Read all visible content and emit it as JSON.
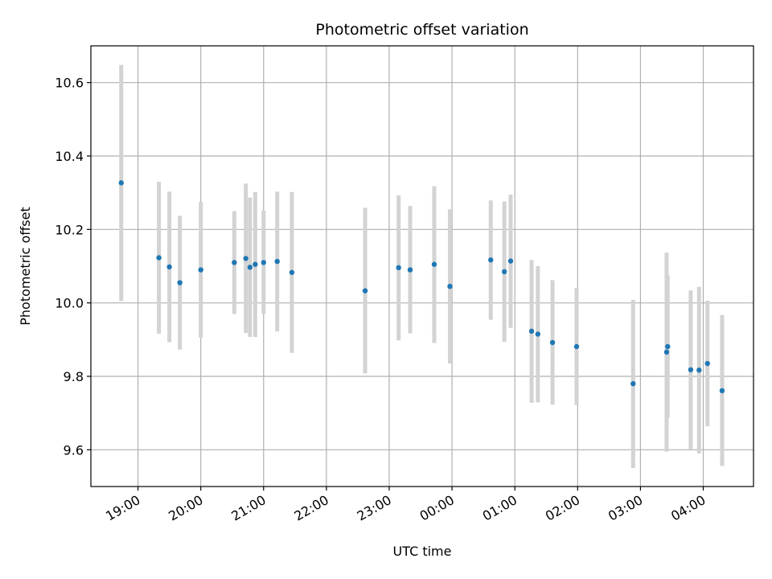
{
  "chart_data": {
    "type": "scatter",
    "title": "Photometric offset variation",
    "xlabel": "UTC time",
    "ylabel": "Photometric offset",
    "grid": true,
    "ylim": [
      9.5,
      10.7
    ],
    "yticks": [
      9.6,
      9.8,
      10.0,
      10.2,
      10.4,
      10.6
    ],
    "ytick_labels": [
      "9.6",
      "9.8",
      "10.0",
      "10.2",
      "10.4",
      "10.6"
    ],
    "xlim": [
      "18:15",
      "04:48"
    ],
    "xticks": [
      "19:00",
      "20:00",
      "21:00",
      "22:00",
      "23:00",
      "00:00",
      "01:00",
      "02:00",
      "03:00",
      "04:00"
    ],
    "colors": {
      "point": "#1f77b4",
      "errorbar": "#d3d3d3",
      "grid": "#b0b0b0"
    },
    "points": [
      {
        "x": "18:44",
        "y": 10.327,
        "low": 10.005,
        "high": 10.648
      },
      {
        "x": "19:20",
        "y": 10.123,
        "low": 9.916,
        "high": 10.33
      },
      {
        "x": "19:30",
        "y": 10.098,
        "low": 9.893,
        "high": 10.303
      },
      {
        "x": "19:40",
        "y": 10.055,
        "low": 9.873,
        "high": 10.237
      },
      {
        "x": "20:00",
        "y": 10.09,
        "low": 9.905,
        "high": 10.275
      },
      {
        "x": "20:32",
        "y": 10.11,
        "low": 9.97,
        "high": 10.25
      },
      {
        "x": "20:43",
        "y": 10.121,
        "low": 9.918,
        "high": 10.325
      },
      {
        "x": "20:47",
        "y": 10.097,
        "low": 9.907,
        "high": 10.287
      },
      {
        "x": "20:52",
        "y": 10.105,
        "low": 9.907,
        "high": 10.302
      },
      {
        "x": "21:00",
        "y": 10.11,
        "low": 9.97,
        "high": 10.251
      },
      {
        "x": "21:13",
        "y": 10.113,
        "low": 9.922,
        "high": 10.303
      },
      {
        "x": "21:27",
        "y": 10.083,
        "low": 9.864,
        "high": 10.302
      },
      {
        "x": "22:37",
        "y": 10.033,
        "low": 9.808,
        "high": 10.259
      },
      {
        "x": "23:09",
        "y": 10.096,
        "low": 9.898,
        "high": 10.293
      },
      {
        "x": "23:20",
        "y": 10.09,
        "low": 9.917,
        "high": 10.264
      },
      {
        "x": "23:43",
        "y": 10.105,
        "low": 9.891,
        "high": 10.318
      },
      {
        "x": "23:58",
        "y": 10.045,
        "low": 9.835,
        "high": 10.255
      },
      {
        "x": "00:37",
        "y": 10.117,
        "low": 9.954,
        "high": 10.279
      },
      {
        "x": "00:50",
        "y": 10.085,
        "low": 9.894,
        "high": 10.276
      },
      {
        "x": "00:56",
        "y": 10.114,
        "low": 9.932,
        "high": 10.295
      },
      {
        "x": "01:16",
        "y": 9.923,
        "low": 9.728,
        "high": 10.117
      },
      {
        "x": "01:22",
        "y": 9.915,
        "low": 9.729,
        "high": 10.1
      },
      {
        "x": "01:36",
        "y": 9.892,
        "low": 9.723,
        "high": 10.062
      },
      {
        "x": "01:59",
        "y": 9.881,
        "low": 9.722,
        "high": 10.041
      },
      {
        "x": "02:53",
        "y": 9.78,
        "low": 9.55,
        "high": 10.008
      },
      {
        "x": "03:25",
        "y": 9.866,
        "low": 9.595,
        "high": 10.137
      },
      {
        "x": "03:26",
        "y": 9.881,
        "low": 9.687,
        "high": 10.075
      },
      {
        "x": "03:48",
        "y": 9.818,
        "low": 9.602,
        "high": 10.034
      },
      {
        "x": "03:56",
        "y": 9.817,
        "low": 9.59,
        "high": 10.044
      },
      {
        "x": "04:04",
        "y": 9.835,
        "low": 9.664,
        "high": 10.006
      },
      {
        "x": "04:18",
        "y": 9.761,
        "low": 9.556,
        "high": 9.967
      }
    ]
  }
}
